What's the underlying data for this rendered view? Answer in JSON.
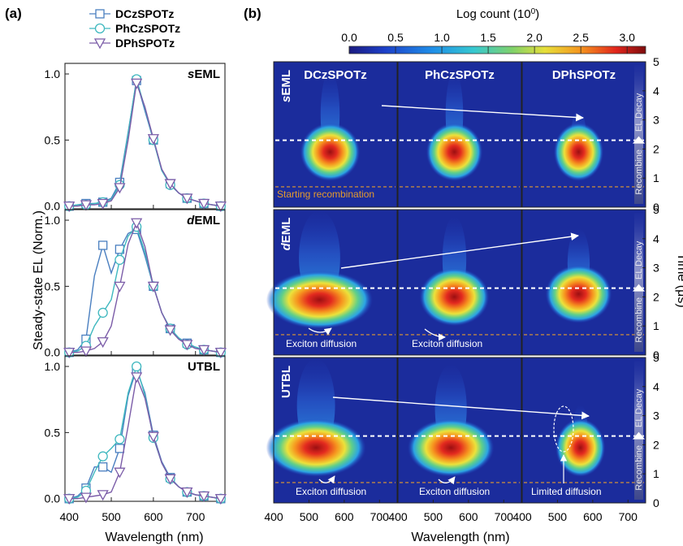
{
  "panel_a": {
    "label": "(a)",
    "ylabel": "Steady-state EL (Norm.)",
    "xlabel": "Wavelength (nm)",
    "legend": [
      "DCzSPOTz",
      "PhCzSPOTz",
      "DPhSPOTz"
    ]
  },
  "panel_b": {
    "label": "(b)",
    "colorbar_title": "Log count (10",
    "colorbar_title_sup": "0",
    "colorbar_title_end": ")",
    "colorbar_ticks": [
      "0.0",
      "0.5",
      "1.0",
      "1.5",
      "2.0",
      "2.5",
      "3.0"
    ],
    "columns": [
      "DCzSPOTz",
      "PhCzSPOTz",
      "DPhSPOTz"
    ],
    "rows": [
      "sEML",
      "dEML",
      "UTBL"
    ],
    "xlabel": "Wavelength (nm)",
    "ylabel": "Time (μs)",
    "starting_recombination": "Starting recombination",
    "exciton_diffusion": "Exciton diffusion",
    "limited_diffusion": "Limited diffusion",
    "recombine": "Recombine",
    "el_decay": "EL Decay"
  },
  "chart_data": [
    {
      "type": "line",
      "title": "",
      "panel": "(a) sEML",
      "xlabel": "Wavelength (nm)",
      "ylabel": "Steady-state EL (Norm.)",
      "xlim": [
        390,
        770
      ],
      "ylim": [
        -0.02,
        1.08
      ],
      "xticks": [
        "400",
        "500",
        "600",
        "700"
      ],
      "yticks": [
        "0.0",
        "0.5",
        "1.0"
      ],
      "row_label": "sEML",
      "series": [
        {
          "name": "DCzSPOTz",
          "x": [
            400,
            420,
            440,
            460,
            480,
            500,
            520,
            540,
            560,
            580,
            600,
            620,
            640,
            660,
            680,
            700,
            720,
            740,
            760
          ],
          "y": [
            0,
            0.01,
            0.02,
            0.02,
            0.03,
            0.06,
            0.18,
            0.56,
            0.95,
            0.72,
            0.5,
            0.27,
            0.17,
            0.1,
            0.06,
            0.04,
            0.02,
            0.01,
            0
          ]
        },
        {
          "name": "PhCzSPOTz",
          "x": [
            400,
            420,
            440,
            460,
            480,
            500,
            520,
            540,
            560,
            580,
            600,
            620,
            640,
            660,
            680,
            700,
            720,
            740,
            760
          ],
          "y": [
            0,
            0.01,
            0.01,
            0.02,
            0.03,
            0.05,
            0.16,
            0.55,
            0.96,
            0.74,
            0.5,
            0.27,
            0.16,
            0.1,
            0.06,
            0.04,
            0.02,
            0.01,
            0
          ]
        },
        {
          "name": "DPhSPOTz",
          "x": [
            400,
            420,
            440,
            460,
            480,
            500,
            520,
            540,
            560,
            580,
            600,
            620,
            640,
            660,
            680,
            700,
            720,
            740,
            760
          ],
          "y": [
            0,
            0,
            0.01,
            0.01,
            0.02,
            0.04,
            0.14,
            0.5,
            0.93,
            0.75,
            0.51,
            0.28,
            0.17,
            0.1,
            0.06,
            0.04,
            0.02,
            0.01,
            0
          ]
        }
      ]
    },
    {
      "type": "line",
      "title": "",
      "panel": "(a) dEML",
      "xlabel": "Wavelength (nm)",
      "ylabel": "Steady-state EL (Norm.)",
      "xlim": [
        390,
        770
      ],
      "ylim": [
        -0.02,
        1.08
      ],
      "xticks": [
        "400",
        "500",
        "600",
        "700"
      ],
      "yticks": [
        "0.0",
        "0.5",
        "1.0"
      ],
      "row_label": "dEML",
      "series": [
        {
          "name": "DCzSPOTz",
          "x": [
            400,
            420,
            440,
            460,
            480,
            500,
            520,
            540,
            560,
            580,
            600,
            620,
            640,
            660,
            680,
            700,
            720,
            740,
            760
          ],
          "y": [
            0,
            0.02,
            0.1,
            0.58,
            0.81,
            0.6,
            0.78,
            0.9,
            0.93,
            0.73,
            0.5,
            0.3,
            0.18,
            0.11,
            0.07,
            0.04,
            0.02,
            0.01,
            0
          ]
        },
        {
          "name": "PhCzSPOTz",
          "x": [
            400,
            420,
            440,
            460,
            480,
            500,
            520,
            540,
            560,
            580,
            600,
            620,
            640,
            660,
            680,
            700,
            720,
            740,
            760
          ],
          "y": [
            0,
            0.01,
            0.05,
            0.2,
            0.3,
            0.4,
            0.7,
            0.88,
            0.95,
            0.76,
            0.5,
            0.3,
            0.18,
            0.11,
            0.06,
            0.04,
            0.02,
            0.01,
            0
          ]
        },
        {
          "name": "DPhSPOTz",
          "x": [
            400,
            420,
            440,
            460,
            480,
            500,
            520,
            540,
            560,
            580,
            600,
            620,
            640,
            660,
            680,
            700,
            720,
            740,
            760
          ],
          "y": [
            0,
            0,
            0.01,
            0.03,
            0.08,
            0.2,
            0.5,
            0.82,
            0.98,
            0.8,
            0.5,
            0.3,
            0.17,
            0.1,
            0.06,
            0.03,
            0.02,
            0.01,
            0
          ]
        }
      ]
    },
    {
      "type": "line",
      "title": "",
      "panel": "(a) UTBL",
      "xlabel": "Wavelength (nm)",
      "ylabel": "Steady-state EL (Norm.)",
      "xlim": [
        390,
        770
      ],
      "ylim": [
        -0.02,
        1.08
      ],
      "xticks": [
        "400",
        "500",
        "600",
        "700"
      ],
      "yticks": [
        "0.0",
        "0.5",
        "1.0"
      ],
      "row_label": "UTBL",
      "series": [
        {
          "name": "DCzSPOTz",
          "x": [
            400,
            420,
            440,
            460,
            480,
            500,
            520,
            540,
            560,
            580,
            600,
            620,
            640,
            660,
            680,
            700,
            720,
            740,
            760
          ],
          "y": [
            0,
            0.02,
            0.08,
            0.24,
            0.24,
            0.2,
            0.38,
            0.78,
            0.98,
            0.8,
            0.48,
            0.28,
            0.16,
            0.09,
            0.05,
            0.03,
            0.02,
            0.01,
            0
          ]
        },
        {
          "name": "PhCzSPOTz",
          "x": [
            400,
            420,
            440,
            460,
            480,
            500,
            520,
            540,
            560,
            580,
            600,
            620,
            640,
            660,
            680,
            700,
            720,
            740,
            760
          ],
          "y": [
            0,
            0.01,
            0.06,
            0.2,
            0.32,
            0.38,
            0.45,
            0.8,
            1.0,
            0.78,
            0.46,
            0.27,
            0.15,
            0.09,
            0.05,
            0.03,
            0.02,
            0.01,
            0
          ]
        },
        {
          "name": "DPhSPOTz",
          "x": [
            400,
            420,
            440,
            460,
            480,
            500,
            520,
            540,
            560,
            580,
            600,
            620,
            640,
            660,
            680,
            700,
            720,
            740,
            760
          ],
          "y": [
            0,
            0,
            0.01,
            0.02,
            0.03,
            0.05,
            0.2,
            0.55,
            0.92,
            0.76,
            0.47,
            0.27,
            0.15,
            0.09,
            0.05,
            0.03,
            0.02,
            0.01,
            0
          ]
        }
      ]
    },
    {
      "type": "heatmap",
      "title": "",
      "panel": "(b)",
      "xlabel": "Wavelength (nm)",
      "ylabel": "Time (μs)",
      "xlim": [
        400,
        750
      ],
      "ylim": [
        0,
        5
      ],
      "xticks": [
        "400",
        "500",
        "600",
        "700"
      ],
      "yticks": [
        "0",
        "1",
        "2",
        "3",
        "4",
        "5"
      ],
      "colorbar_range": [
        0.0,
        3.2
      ],
      "dashed_line_time_white": 2.3,
      "dashed_line_time_orange": 0.7,
      "grid": [
        {
          "row": "sEML",
          "col": "DCzSPOTz",
          "peak_wavelength": 560,
          "peak_time": 1.9,
          "width_nm": 60,
          "plume_top_time": 4.5
        },
        {
          "row": "sEML",
          "col": "PhCzSPOTz",
          "peak_wavelength": 560,
          "peak_time": 1.9,
          "width_nm": 55,
          "plume_top_time": 4.5
        },
        {
          "row": "sEML",
          "col": "DPhSPOTz",
          "peak_wavelength": 560,
          "peak_time": 1.9,
          "width_nm": 45,
          "plume_top_time": 3.2
        },
        {
          "row": "dEML",
          "col": "DCzSPOTz",
          "peak_wavelength": 530,
          "peak_time": 1.9,
          "width_nm": 130,
          "plume_top_time": 4.8
        },
        {
          "row": "dEML",
          "col": "PhCzSPOTz",
          "peak_wavelength": 560,
          "peak_time": 2.0,
          "width_nm": 75,
          "plume_top_time": 4.6
        },
        {
          "row": "dEML",
          "col": "DPhSPOTz",
          "peak_wavelength": 560,
          "peak_time": 2.1,
          "width_nm": 70,
          "plume_top_time": 4.2
        },
        {
          "row": "UTBL",
          "col": "DCzSPOTz",
          "peak_wavelength": 520,
          "peak_time": 1.9,
          "width_nm": 120,
          "plume_top_time": 4.8
        },
        {
          "row": "UTBL",
          "col": "PhCzSPOTz",
          "peak_wavelength": 550,
          "peak_time": 1.9,
          "width_nm": 100,
          "plume_top_time": 4.6
        },
        {
          "row": "UTBL",
          "col": "DPhSPOTz",
          "peak_wavelength": 565,
          "peak_time": 1.9,
          "width_nm": 45,
          "plume_top_time": 3.2
        }
      ]
    }
  ],
  "colors": {
    "DCzSPOTz": "#4a7fc0",
    "PhCzSPOTz": "#3fb8bf",
    "DPhSPOTz": "#7b5ca8",
    "orange_dash": "#e39a2e"
  }
}
